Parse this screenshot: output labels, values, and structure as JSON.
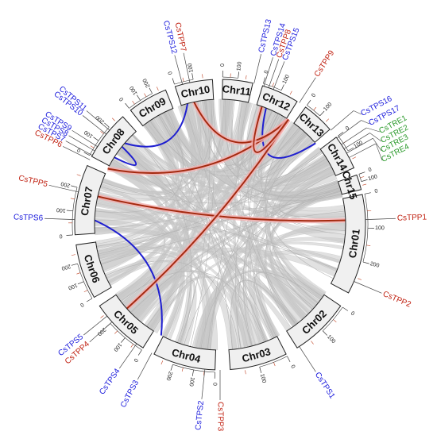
{
  "colors": {
    "background": "#ffffff",
    "synteny_gray": "#c8c8c8",
    "tps_link": "#1f1fd0",
    "tpp_link": "#a52a10",
    "tpp_glow": "#f4b0b0",
    "label_tps": "#1a1adc",
    "label_tpp": "#c02010",
    "label_tre": "#2a9a2a",
    "chr_box_fill": "#f0f0f0",
    "chr_box_stroke": "#222222"
  },
  "chromosomes": [
    {
      "name": "Chr01",
      "ticks": [
        "0",
        "100",
        "200"
      ]
    },
    {
      "name": "Chr02",
      "ticks": [
        "0",
        "100"
      ]
    },
    {
      "name": "Chr03",
      "ticks": [
        "0",
        "100"
      ]
    },
    {
      "name": "Chr04",
      "ticks": [
        "0",
        "100",
        "200"
      ]
    },
    {
      "name": "Chr05",
      "ticks": [
        "0",
        "100",
        "200"
      ]
    },
    {
      "name": "Chr06",
      "ticks": [
        "0",
        "100",
        "200"
      ]
    },
    {
      "name": "Chr07",
      "ticks": [
        "0",
        "100",
        "200"
      ]
    },
    {
      "name": "Chr08",
      "ticks": [
        "0",
        "100",
        "200"
      ]
    },
    {
      "name": "Chr09",
      "ticks": [
        "0",
        "100",
        "200"
      ]
    },
    {
      "name": "Chr10",
      "ticks": [
        "0",
        "100"
      ]
    },
    {
      "name": "Chr11",
      "ticks": [
        "0",
        "100"
      ]
    },
    {
      "name": "Chr12",
      "ticks": [
        "0",
        "100"
      ]
    },
    {
      "name": "Chr13",
      "ticks": [
        "0",
        "100"
      ]
    },
    {
      "name": "Chr14",
      "ticks": [
        "0",
        "100"
      ]
    },
    {
      "name": "Chr15",
      "ticks": [
        "0",
        "100"
      ]
    }
  ],
  "genes": [
    {
      "name": "CsTPP1",
      "family": "TPP"
    },
    {
      "name": "CsTPP2",
      "family": "TPP"
    },
    {
      "name": "CsTPS1",
      "family": "TPS"
    },
    {
      "name": "CsTPP3",
      "family": "TPP"
    },
    {
      "name": "CsTPS2",
      "family": "TPS"
    },
    {
      "name": "CsTPS3",
      "family": "TPS"
    },
    {
      "name": "CsTPS4",
      "family": "TPS"
    },
    {
      "name": "CsTPP4",
      "family": "TPP"
    },
    {
      "name": "CsTPS5",
      "family": "TPS"
    },
    {
      "name": "CsTPS6",
      "family": "TPS"
    },
    {
      "name": "CsTPP5",
      "family": "TPP"
    },
    {
      "name": "CsTPP6",
      "family": "TPP"
    },
    {
      "name": "CsTPS7",
      "family": "TPS"
    },
    {
      "name": "CsTPS8",
      "family": "TPS"
    },
    {
      "name": "CsTPS9",
      "family": "TPS"
    },
    {
      "name": "CsTPS10",
      "family": "TPS"
    },
    {
      "name": "CsTPS11",
      "family": "TPS"
    },
    {
      "name": "CsTPS12",
      "family": "TPS"
    },
    {
      "name": "CsTPP7",
      "family": "TPP"
    },
    {
      "name": "CsTPS13",
      "family": "TPS"
    },
    {
      "name": "CsTPS14",
      "family": "TPS"
    },
    {
      "name": "CsTPP8",
      "family": "TPP"
    },
    {
      "name": "CsTPS15",
      "family": "TPS"
    },
    {
      "name": "CsTPP9",
      "family": "TPP"
    },
    {
      "name": "CsTPS16",
      "family": "TPS"
    },
    {
      "name": "CsTPS17",
      "family": "TPS"
    },
    {
      "name": "CsTRE1",
      "family": "TRE"
    },
    {
      "name": "CsTRE2",
      "family": "TRE"
    },
    {
      "name": "CsTRE3",
      "family": "TRE"
    },
    {
      "name": "CsTRE4",
      "family": "TRE"
    }
  ],
  "links": [
    {
      "from": "CsTPS9",
      "to": "CsTPS10",
      "family": "TPS"
    },
    {
      "from": "CsTPS11",
      "to": "CsTPS12",
      "family": "TPS"
    },
    {
      "from": "CsTPS6",
      "to": "CsTPS3",
      "family": "TPS"
    },
    {
      "from": "CsTPS15",
      "to": "CsTPS16",
      "family": "TPS"
    },
    {
      "from": "CsTPP5",
      "to": "CsTPP1",
      "family": "TPP"
    },
    {
      "from": "CsTPP4",
      "to": "CsTPP9",
      "family": "TPP"
    },
    {
      "from": "CsTPP6",
      "to": "CsTPP9",
      "family": "TPP"
    },
    {
      "from": "CsTPP7",
      "to": "CsTPP9",
      "family": "TPP"
    },
    {
      "from": "CsTPP8",
      "to": "CsTPP9",
      "family": "TPP"
    }
  ]
}
